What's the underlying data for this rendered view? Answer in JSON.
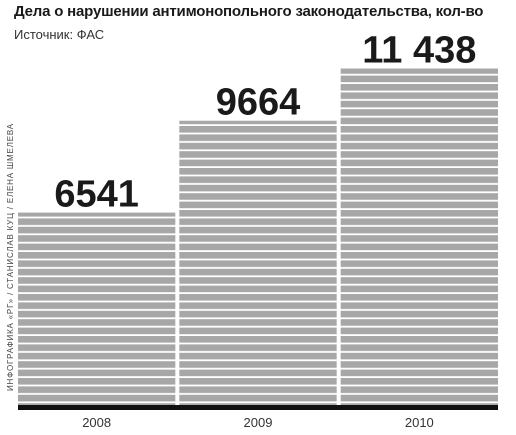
{
  "header": {
    "title": "Дела о нарушении антимонопольного законодательства, кол-во",
    "source": "Источник: ФАС"
  },
  "credit": "ИНФОГРАФИКА «РГ» / СТАНИСЛАВ КУЦ / ЕЛЕНА ШМЕЛЕВА",
  "chart_data": {
    "type": "bar",
    "title": "Дела о нарушении антимонопольного законодательства, кол-во",
    "categories": [
      "2008",
      "2009",
      "2010"
    ],
    "values": [
      6541,
      9664,
      11438
    ],
    "value_labels": [
      "6541",
      "9664",
      "11 438"
    ],
    "xlabel": "",
    "ylabel": "",
    "ylim": [
      0,
      12000
    ],
    "grid": false,
    "colors": {
      "bar": "#a7a7a7",
      "stripe": "#ffffff",
      "baseline": "#111111"
    }
  }
}
